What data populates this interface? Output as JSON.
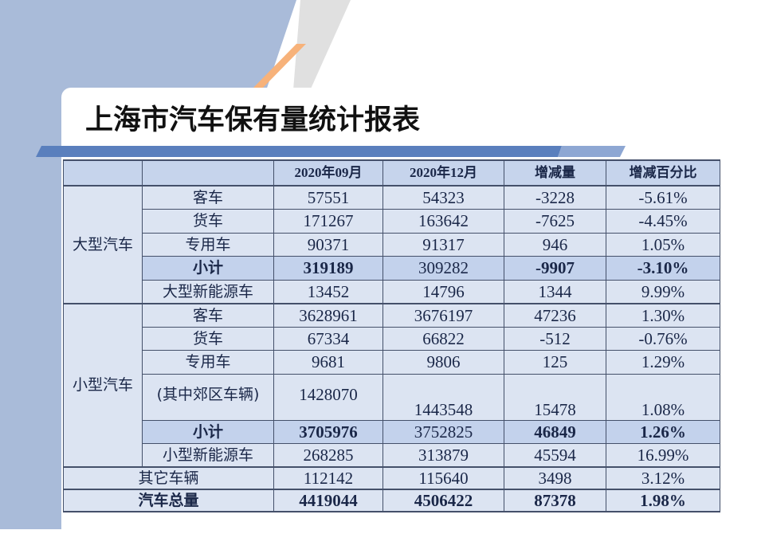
{
  "title": "上海市汽车保有量统计报表",
  "colors": {
    "panel": "#a9bbd9",
    "accent_bar": "#5a7fbd",
    "orange": "#f7b27a",
    "cell": "#dce4f2",
    "subtotal": "#c3d2ec",
    "text": "#1a2748"
  },
  "table": {
    "headers": [
      "",
      "",
      "2020年09月",
      "2020年12月",
      "增减量",
      "增减百分比"
    ],
    "large": {
      "group": "大型汽车",
      "rows": [
        {
          "label": "客车",
          "v": [
            "57551",
            "54323",
            "-3228",
            "-5.61%"
          ]
        },
        {
          "label": "货车",
          "v": [
            "171267",
            "163642",
            "-7625",
            "-4.45%"
          ]
        },
        {
          "label": "专用车",
          "v": [
            "90371",
            "91317",
            "946",
            "1.05%"
          ]
        },
        {
          "label": "小计",
          "v": [
            "319189",
            "309282",
            "-9907",
            "-3.10%"
          ]
        },
        {
          "label": "大型新能源车",
          "v": [
            "13452",
            "14796",
            "1344",
            "9.99%"
          ]
        }
      ]
    },
    "small": {
      "group": "小型汽车",
      "rows": [
        {
          "label": "客车",
          "v": [
            "3628961",
            "3676197",
            "47236",
            "1.30%"
          ]
        },
        {
          "label": "货车",
          "v": [
            "67334",
            "66822",
            "-512",
            "-0.76%"
          ]
        },
        {
          "label": "专用车",
          "v": [
            "9681",
            "9806",
            "125",
            "1.29%"
          ]
        },
        {
          "label": "(其中郊区车辆)",
          "v": [
            "1428070",
            "1443548",
            "15478",
            "1.08%"
          ]
        },
        {
          "label": "小计",
          "v": [
            "3705976",
            "3752825",
            "46849",
            "1.26%"
          ]
        },
        {
          "label": "小型新能源车",
          "v": [
            "268285",
            "313879",
            "45594",
            "16.99%"
          ]
        }
      ]
    },
    "other": {
      "label": "其它车辆",
      "v": [
        "112142",
        "115640",
        "3498",
        "3.12%"
      ]
    },
    "total": {
      "label": "汽车总量",
      "v": [
        "4419044",
        "4506422",
        "87378",
        "1.98%"
      ]
    }
  }
}
